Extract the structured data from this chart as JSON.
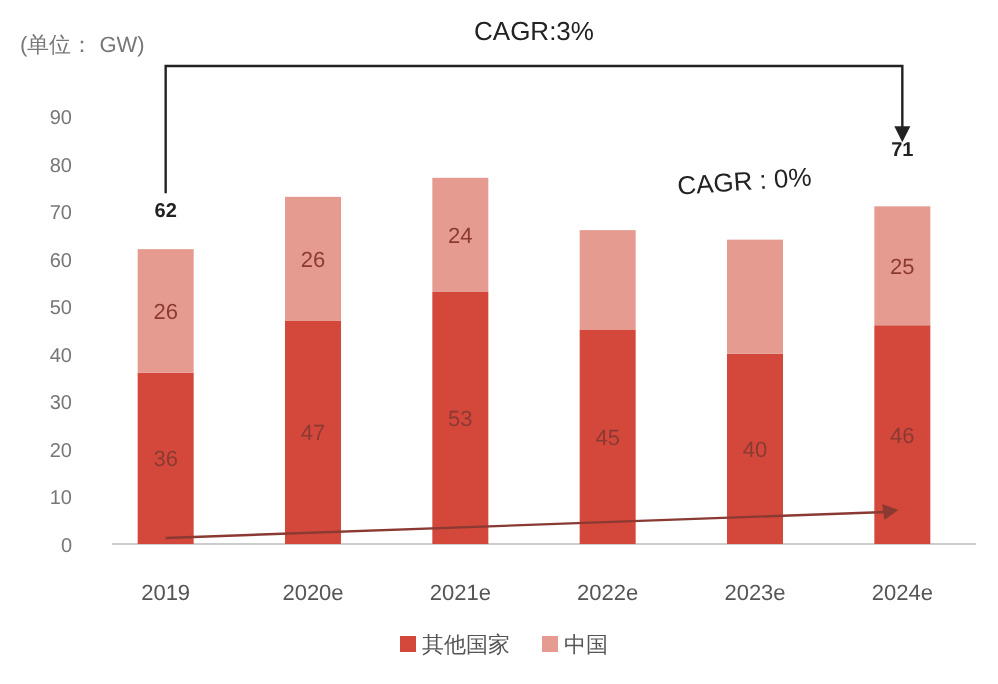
{
  "chart_data": {
    "type": "bar",
    "stacked": true,
    "ylabel": "(单位： GW)",
    "categories": [
      "2019",
      "2020e",
      "2021e",
      "2022e",
      "2023e",
      "2024e"
    ],
    "series": [
      {
        "name": "其他国家",
        "color": "#d4483b",
        "values": [
          36,
          47,
          53,
          45,
          40,
          46
        ],
        "value_labels": [
          "36",
          "47",
          "53",
          "45",
          "40",
          "46"
        ]
      },
      {
        "name": "中国",
        "color": "#e59b90",
        "values": [
          26,
          26,
          24,
          21,
          24,
          25
        ],
        "value_labels": [
          "26",
          "26",
          "24",
          null,
          null,
          "25"
        ]
      }
    ],
    "totals": [
      "62",
      null,
      null,
      null,
      null,
      "71"
    ],
    "annotations": [
      "CAGR:3%",
      "CAGR : 0%"
    ],
    "ylim": [
      0,
      90
    ],
    "yticks": [
      0,
      10,
      20,
      30,
      40,
      50,
      60,
      70,
      80,
      90
    ],
    "grid": false,
    "legend": "bottom"
  }
}
